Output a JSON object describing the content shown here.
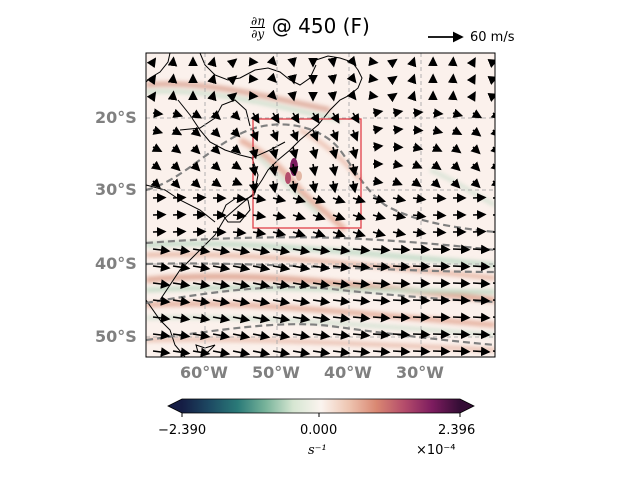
{
  "title": {
    "numerator": "∂η",
    "denominator": "∂y",
    "text": "@ 450 (F)"
  },
  "reference_vector": {
    "label": "60 m/s"
  },
  "map": {
    "latitude_labels": [
      "20°S",
      "30°S",
      "40°S",
      "50°S"
    ],
    "longitude_labels": [
      "60°W",
      "50°W",
      "40°W",
      "30°W"
    ],
    "lat_range": [
      -53,
      -10
    ],
    "lon_range": [
      -68,
      -20
    ],
    "gridlines": true,
    "highlight_box": {
      "lon": [
        -53,
        -38
      ],
      "lat": [
        -35,
        -20
      ],
      "color": "#e0404a"
    },
    "colormap": "curl (teal–white–magenta)"
  },
  "colorbar": {
    "min_label": "−2.390",
    "mid_label": "0.000",
    "max_label": "2.396",
    "unit": "s⁻¹",
    "exponent": "×10⁻⁴",
    "colors": [
      "#151d44",
      "#1d4a63",
      "#2a7a78",
      "#77b39a",
      "#d6e6d2",
      "#fbf4ef",
      "#eec5b1",
      "#d98772",
      "#b44c6b",
      "#7d1c5f",
      "#340d35"
    ]
  }
}
